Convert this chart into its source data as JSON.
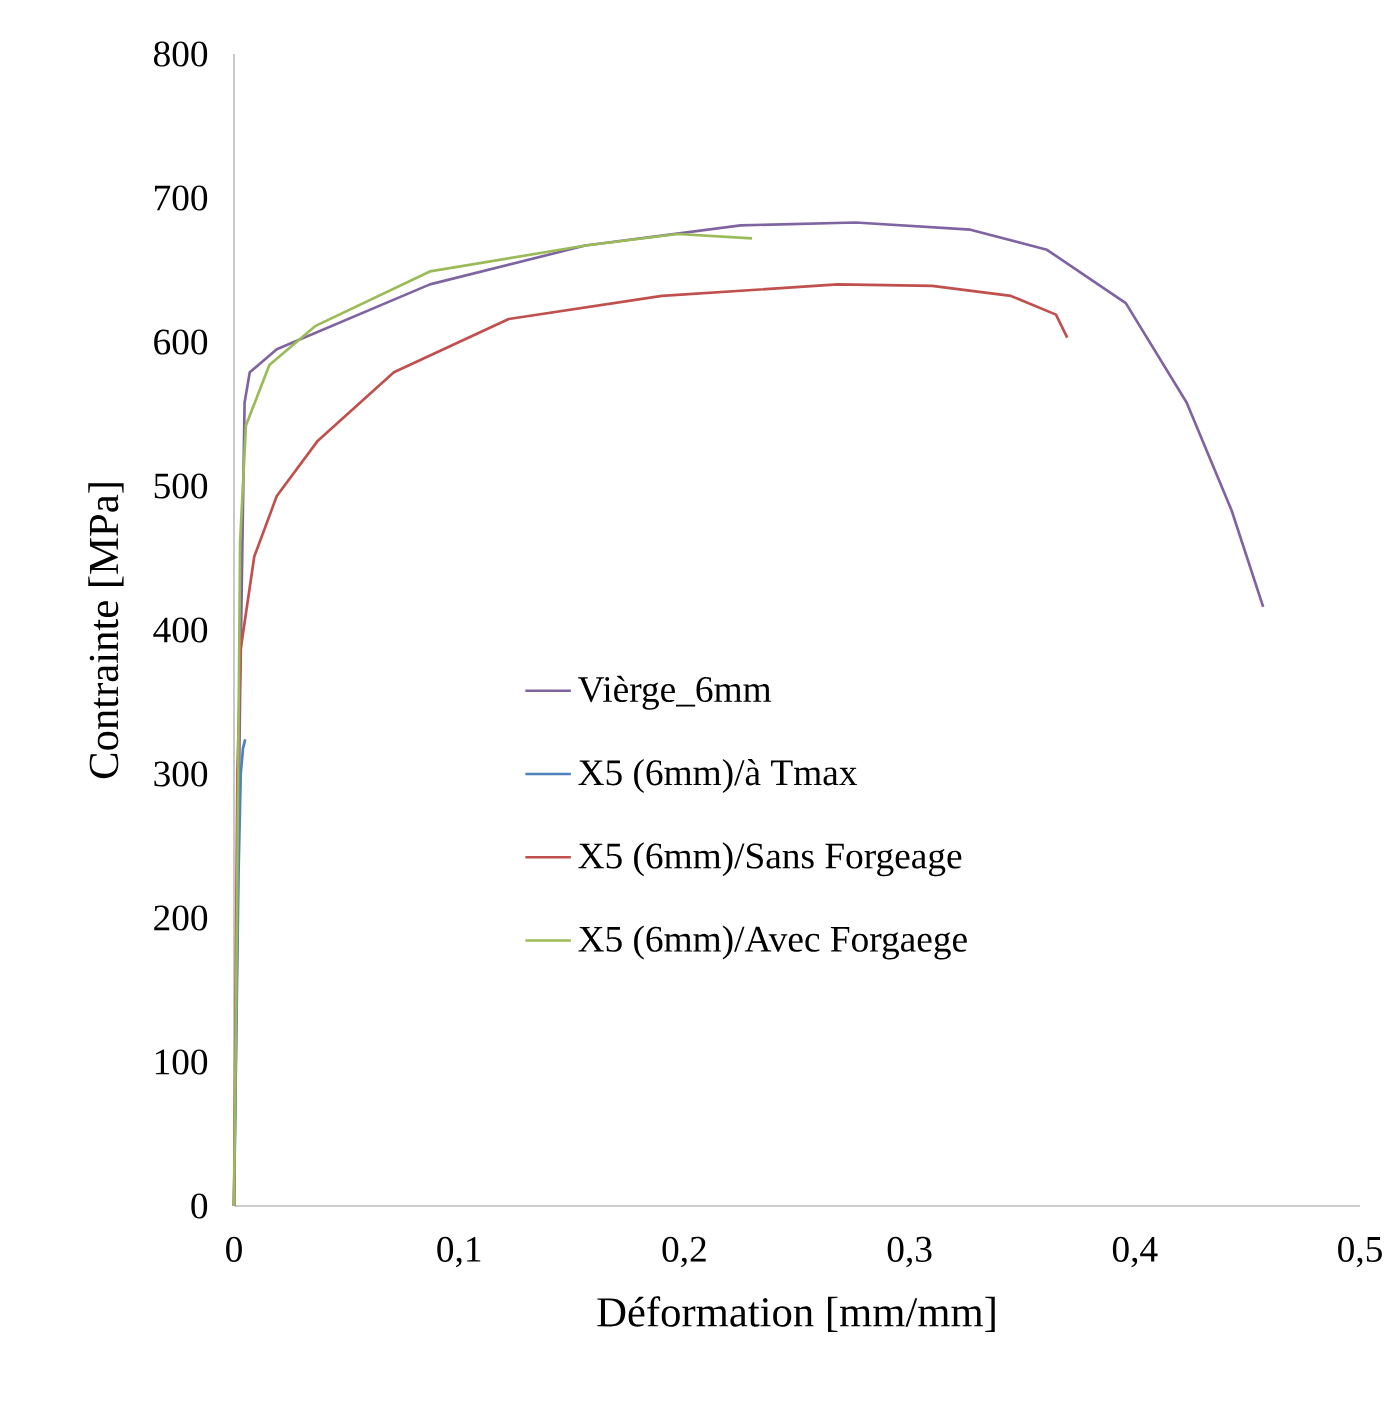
{
  "chart_data": {
    "type": "line",
    "xlabel": "Déformation [mm/mm]",
    "ylabel": "Contrainte [MPa]",
    "xlim": [
      0,
      0.5
    ],
    "ylim": [
      0,
      800
    ],
    "xticks": [
      0,
      {
        "value": 0.1,
        "label": "0,1"
      },
      {
        "value": 0.2,
        "label": "0,2"
      },
      {
        "value": 0.3,
        "label": "0,3"
      },
      {
        "value": 0.4,
        "label": "0,4"
      },
      {
        "value": 0.5,
        "label": "0,5"
      }
    ],
    "yticks": [
      0,
      100,
      200,
      300,
      400,
      500,
      600,
      700,
      800
    ],
    "grid": false,
    "legend": "center",
    "marker": "none",
    "line_style": "solid",
    "series": [
      {
        "name": "Vièrge_6mm",
        "color": "#8064a2",
        "x": [
          0,
          0.0027,
          0.0047,
          0.007,
          0.019,
          0.087,
          0.156,
          0.225,
          0.276,
          0.327,
          0.361,
          0.396,
          0.423,
          0.443,
          0.457
        ],
        "values": [
          0,
          355,
          558,
          579,
          595,
          640,
          667,
          681,
          683,
          678,
          664,
          627,
          558,
          483,
          416
        ]
      },
      {
        "name": "X5 (6mm)/à Tmax",
        "color": "#4f81bd",
        "x": [
          0,
          0.002,
          0.003,
          0.004,
          0.005
        ],
        "values": [
          0,
          230,
          300,
          318,
          324
        ]
      },
      {
        "name": "X5 (6mm)/Sans Forgeage",
        "color": "#c0504d",
        "x": [
          0,
          0.0015,
          0.003,
          0.009,
          0.019,
          0.037,
          0.071,
          0.122,
          0.19,
          0.268,
          0.31,
          0.345,
          0.365,
          0.37
        ],
        "values": [
          0,
          301,
          387,
          451,
          493,
          531,
          579,
          616,
          632,
          640,
          639,
          632,
          619,
          603
        ]
      },
      {
        "name": "X5 (6mm)/Avec Forgaege",
        "color": "#9bbb59",
        "x": [
          0,
          0.0013,
          0.0027,
          0.0053,
          0.0157,
          0.036,
          0.087,
          0.156,
          0.197,
          0.23
        ],
        "values": [
          0,
          199,
          461,
          542,
          584,
          611,
          649,
          667,
          675,
          672
        ]
      }
    ]
  }
}
